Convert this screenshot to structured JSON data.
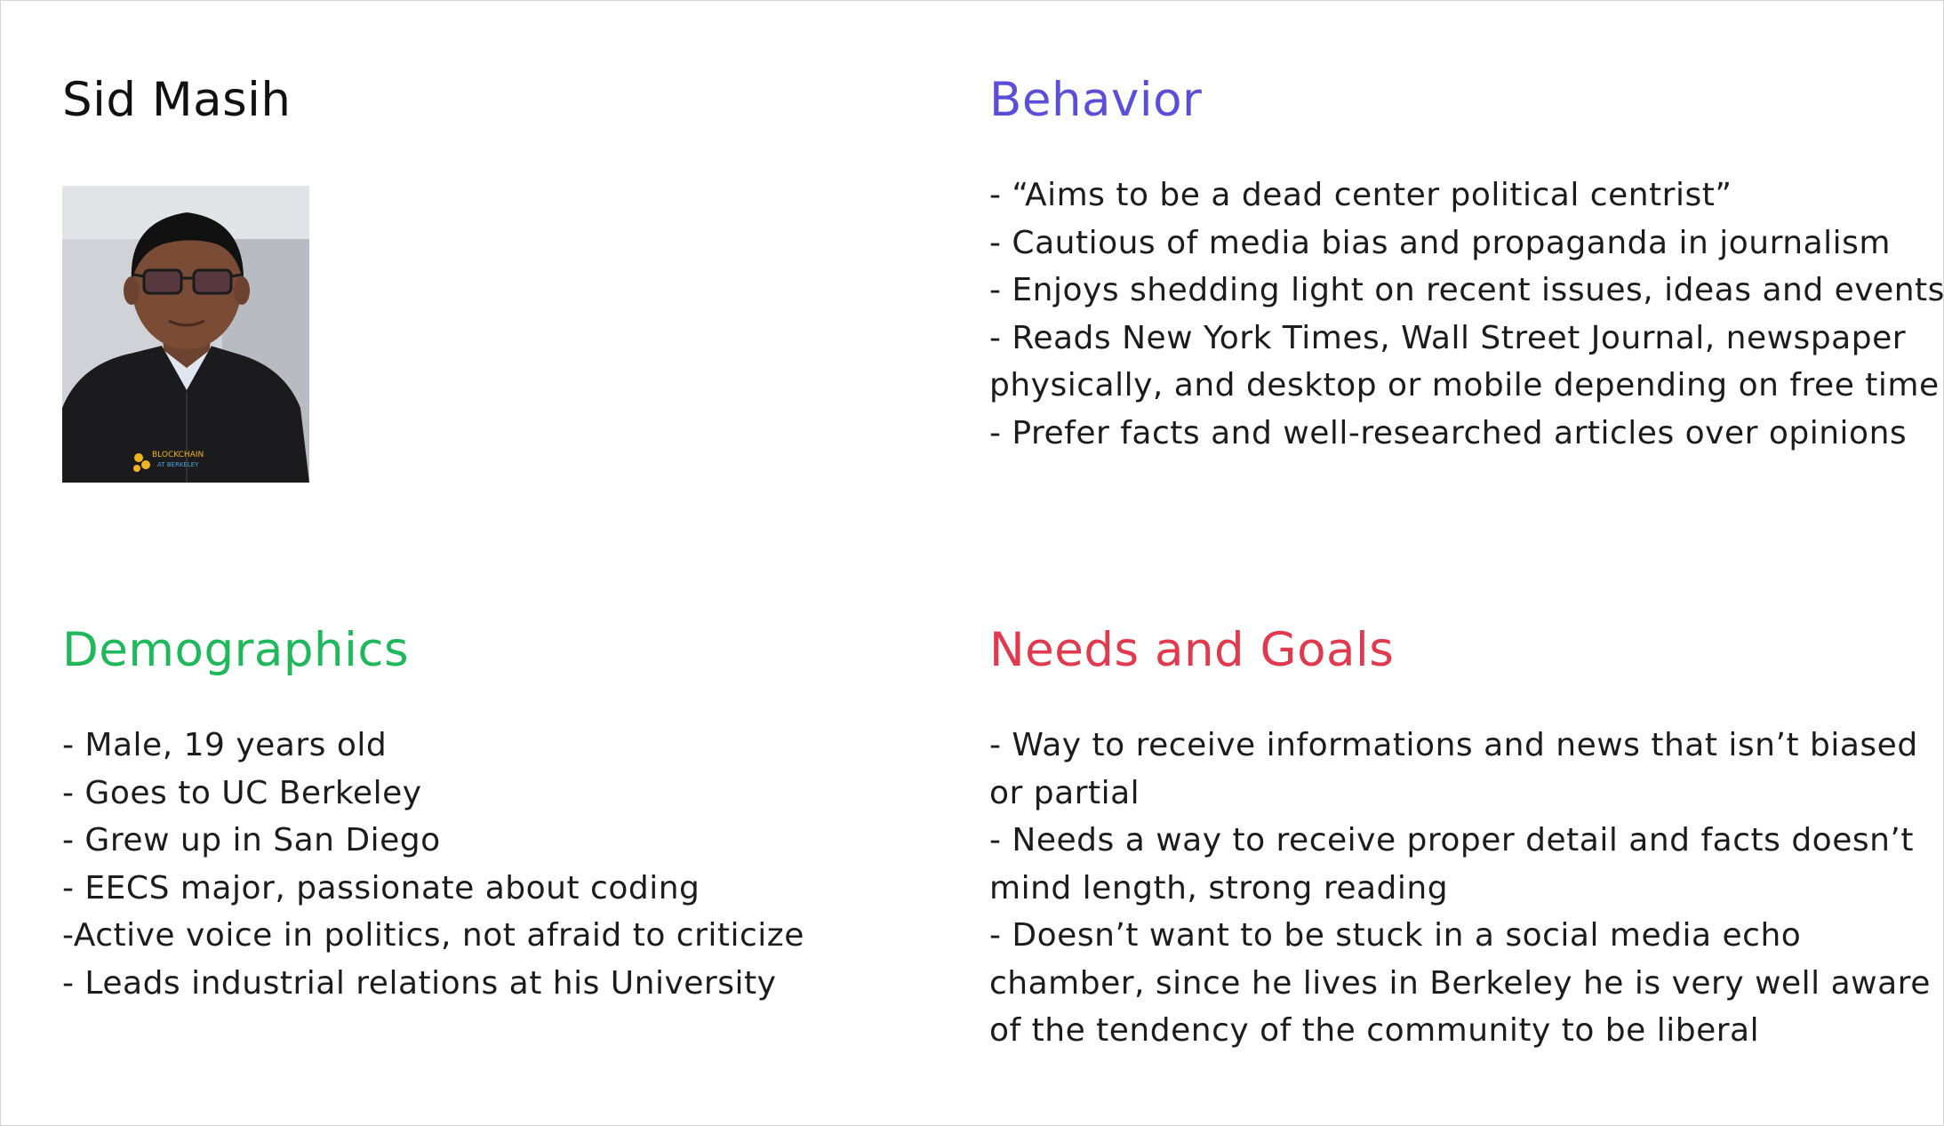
{
  "persona": {
    "name": "Sid Masih",
    "photo_icon": "portrait-photo",
    "photo_badge": "BLOCKCHAIN AT BERKELEY"
  },
  "behavior": {
    "title": "Behavior",
    "color": "#5a4fd6",
    "lines": [
      "- “Aims to be a dead center political centrist”",
      "- Cautious of media bias and propaganda in journalism",
      "- Enjoys shedding light on recent issues, ideas and events",
      "- Reads New York Times, Wall Street Journal, newspaper",
      "physically, and desktop or mobile depending on free time",
      "- Prefer facts and well-researched articles over opinions"
    ]
  },
  "demographics": {
    "title": "Demographics",
    "color": "#1fb85a",
    "lines": [
      "- Male, 19 years old",
      "- Goes to UC Berkeley",
      "- Grew up in San Diego",
      "- EECS major, passionate about coding",
      "-Active voice in politics, not afraid to criticize",
      "- Leads industrial relations at his University"
    ]
  },
  "needs_goals": {
    "title": "Needs and Goals",
    "color": "#e03a4e",
    "lines": [
      "- Way to receive informations and news that isn’t biased",
      "or partial",
      "- Needs a way to receive proper detail and facts doesn’t",
      "mind length, strong reading",
      "- Doesn’t want to be stuck in a social media echo",
      "chamber, since he lives in Berkeley he is very well aware",
      "of the tendency of the community to be liberal"
    ]
  }
}
